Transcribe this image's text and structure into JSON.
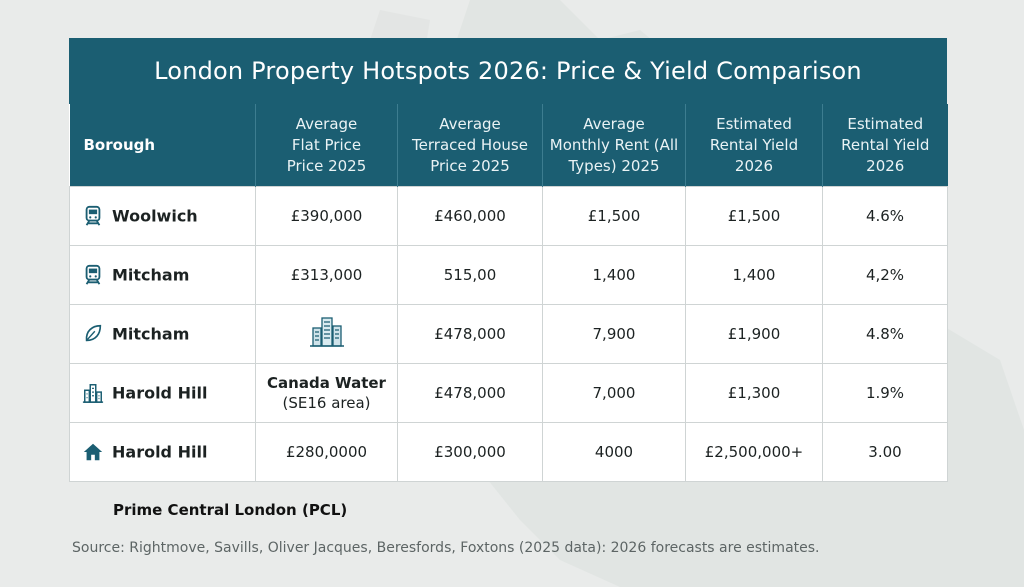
{
  "chart_data": {
    "type": "table",
    "title": "London Property Hotspots 2026: Price & Yield Comparison",
    "columns": [
      "Borough",
      "Average Flat Price Price 2025",
      "Average Terraced House Price 2025",
      "Average Monthly Rent (All Types) 2025",
      "Estimated Rental Yield 2026",
      "Estimated Rental Yield 2026"
    ],
    "header_lines": [
      [
        "Borough"
      ],
      [
        "Average",
        "Flat Price",
        "Price 2025"
      ],
      [
        "Average",
        "Terraced House",
        "Price 2025"
      ],
      [
        "Average",
        "Monthly Rent (All",
        "Types) 2025"
      ],
      [
        "Estimated",
        "Rental Yield",
        "2026"
      ],
      [
        "Estimated",
        "Rental Yield",
        "2026"
      ]
    ],
    "rows": [
      {
        "icon": "train-icon",
        "borough": "Woolwich",
        "flat": "£390,000",
        "terraced": "£460,000",
        "rent": "£1,500",
        "yield_a": "£1,500",
        "yield_b": "4.6%"
      },
      {
        "icon": "train-icon",
        "borough": "Mitcham",
        "flat": "£313,000",
        "terraced": "515,00",
        "rent": "1,400",
        "yield_a": "1,400",
        "yield_b": "4,2%"
      },
      {
        "icon": "leaf-icon",
        "borough": "Mitcham",
        "flat": "",
        "flat_icon": "buildings-icon",
        "terraced": "£478,000",
        "rent": "7,900",
        "yield_a": "£1,900",
        "yield_b": "4.8%"
      },
      {
        "icon": "buildings-icon",
        "borough": "Harold Hill",
        "flat": "Canada Water",
        "flat_sub": "(SE16 area)",
        "terraced": "£478,000",
        "rent": "7,000",
        "yield_a": "£1,300",
        "yield_b": "1.9%"
      },
      {
        "icon": "house-icon",
        "borough": "Harold Hill",
        "flat": "£280,0000",
        "terraced": "£300,000",
        "rent": "4000",
        "yield_a": "£2,500,000+",
        "yield_b": "3.00"
      }
    ]
  },
  "footer_label": "Prime Central London (PCL)",
  "source_note": "Source: Rightmove, Savills, Oliver Jacques, Beresfords, Foxtons (2025 data): 2026 forecasts are estimates.",
  "colors": {
    "header_bg": "#1b5e72",
    "page_bg": "#e9ebea",
    "icon": "#1b5e72"
  }
}
